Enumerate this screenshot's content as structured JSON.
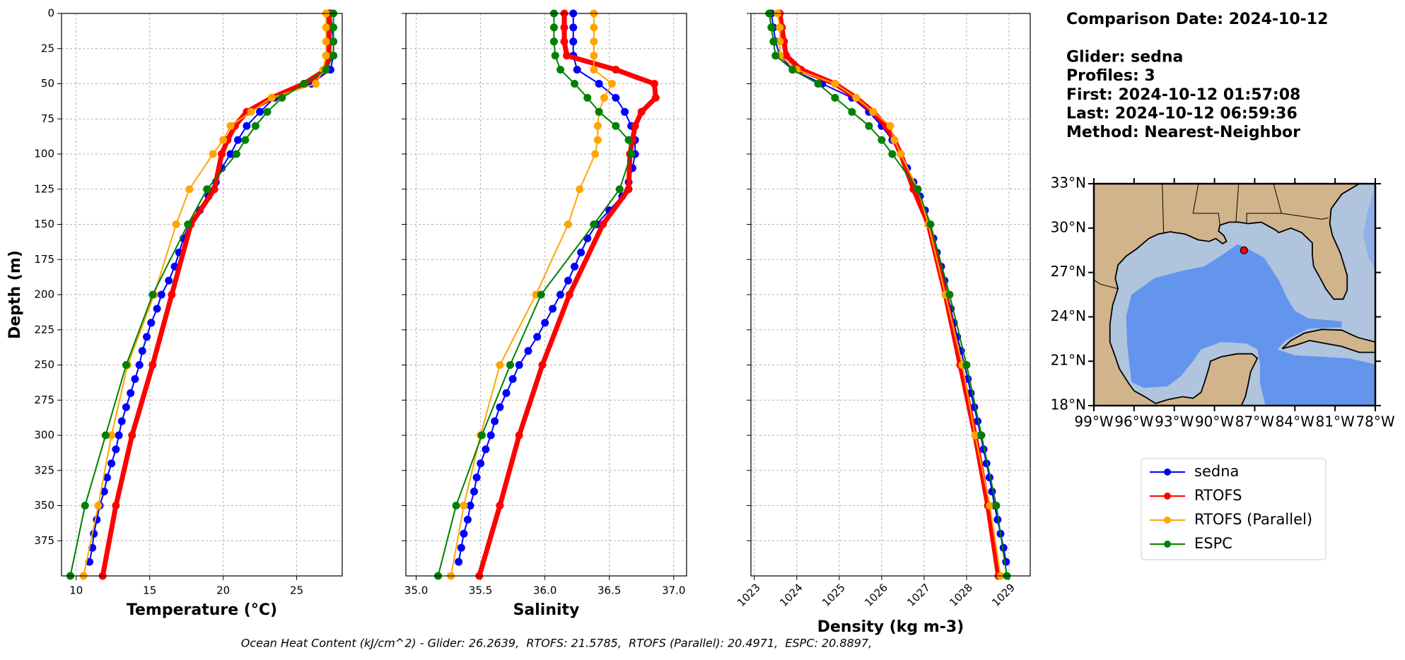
{
  "chart_data": [
    {
      "type": "line",
      "xlabel": "Temperature (°C)",
      "ylabel": "Depth (m)",
      "xlim": [
        9,
        28.1
      ],
      "xticks": [
        10,
        15,
        20,
        25
      ],
      "ylim": [
        400,
        0
      ],
      "yticks": [
        0,
        25,
        50,
        75,
        100,
        125,
        150,
        175,
        200,
        225,
        250,
        275,
        300,
        325,
        350,
        375
      ],
      "grid": true,
      "legend": "outside right",
      "series": [
        {
          "name": "sedna",
          "color": "#0000ff",
          "linewidth": 2,
          "y": [
            0,
            10,
            20,
            30,
            40,
            50,
            60,
            70,
            80,
            90,
            100,
            110,
            120,
            130,
            140,
            150,
            160,
            170,
            180,
            190,
            200,
            210,
            220,
            230,
            240,
            250,
            260,
            270,
            280,
            290,
            300,
            310,
            320,
            330,
            340,
            350,
            360,
            370,
            380,
            390
          ],
          "values": [
            27.3,
            27.4,
            27.5,
            27.5,
            27.3,
            26.0,
            23.5,
            22.5,
            21.6,
            21.0,
            20.5,
            19.9,
            19.5,
            19.0,
            18.4,
            17.7,
            17.3,
            17.0,
            16.7,
            16.3,
            15.8,
            15.5,
            15.1,
            14.8,
            14.5,
            14.3,
            14.0,
            13.7,
            13.4,
            13.1,
            12.9,
            12.7,
            12.4,
            12.1,
            11.9,
            11.6,
            11.4,
            11.2,
            11.1,
            10.9
          ]
        },
        {
          "name": "RTOFS",
          "color": "#ff0000",
          "linewidth": 7,
          "y": [
            0,
            10,
            20,
            30,
            40,
            50,
            60,
            70,
            80,
            90,
            100,
            125,
            150,
            200,
            250,
            300,
            350,
            400
          ],
          "values": [
            27.2,
            27.2,
            27.2,
            27.2,
            27.0,
            25.5,
            23.3,
            21.6,
            20.8,
            20.3,
            19.9,
            19.4,
            17.8,
            16.5,
            15.2,
            13.8,
            12.7,
            11.8
          ]
        },
        {
          "name": "RTOFS (Parallel)",
          "color": "#ffa500",
          "linewidth": 2,
          "y": [
            0,
            10,
            20,
            30,
            40,
            50,
            60,
            70,
            80,
            90,
            100,
            125,
            150,
            200,
            250,
            300,
            350,
            400
          ],
          "values": [
            27.0,
            27.0,
            27.0,
            27.0,
            26.8,
            26.3,
            23.3,
            21.9,
            20.5,
            20.0,
            19.3,
            17.7,
            16.8,
            15.3,
            13.5,
            12.4,
            11.5,
            10.5
          ]
        },
        {
          "name": "ESPC",
          "color": "#008000",
          "linewidth": 2,
          "y": [
            0,
            10,
            20,
            30,
            40,
            50,
            60,
            70,
            80,
            90,
            100,
            125,
            150,
            200,
            250,
            300,
            350,
            400
          ],
          "values": [
            27.5,
            27.5,
            27.5,
            27.5,
            27.0,
            25.5,
            24.0,
            23.0,
            22.2,
            21.5,
            20.9,
            18.9,
            17.6,
            15.2,
            13.4,
            12.0,
            10.6,
            9.6
          ]
        }
      ]
    },
    {
      "type": "line",
      "xlabel": "Salinity",
      "sharey": true,
      "xlim": [
        34.92,
        37.1
      ],
      "xticks": [
        {
          "value": 35,
          "label": "35.0"
        },
        35.5,
        {
          "value": 36,
          "label": "36.0"
        },
        36.5,
        {
          "value": 37,
          "label": "37.0"
        }
      ],
      "ylim": [
        400,
        0
      ],
      "yticks": [
        0,
        25,
        50,
        75,
        100,
        125,
        150,
        175,
        200,
        225,
        250,
        275,
        300,
        325,
        350,
        375
      ],
      "grid": true,
      "series": [
        {
          "color": "#0000ff",
          "linewidth": 2,
          "y": [
            0,
            10,
            20,
            30,
            40,
            50,
            60,
            70,
            80,
            90,
            100,
            110,
            120,
            130,
            140,
            150,
            160,
            170,
            180,
            190,
            200,
            210,
            220,
            230,
            240,
            250,
            260,
            270,
            280,
            290,
            300,
            310,
            320,
            330,
            340,
            350,
            360,
            370,
            380,
            390
          ],
          "values": [
            36.22,
            36.22,
            36.22,
            36.22,
            36.25,
            36.42,
            36.55,
            36.62,
            36.67,
            36.7,
            36.7,
            36.68,
            36.65,
            36.6,
            36.5,
            36.4,
            36.33,
            36.28,
            36.23,
            36.18,
            36.12,
            36.06,
            36.0,
            35.94,
            35.87,
            35.8,
            35.75,
            35.7,
            35.65,
            35.61,
            35.58,
            35.54,
            35.5,
            35.47,
            35.45,
            35.42,
            35.4,
            35.37,
            35.35,
            35.33
          ]
        },
        {
          "color": "#ff0000",
          "linewidth": 7,
          "y": [
            0,
            10,
            20,
            30,
            40,
            50,
            60,
            70,
            80,
            90,
            100,
            125,
            150,
            200,
            250,
            300,
            350,
            400
          ],
          "values": [
            36.15,
            36.15,
            36.15,
            36.17,
            36.55,
            36.85,
            36.86,
            36.75,
            36.7,
            36.68,
            36.66,
            36.65,
            36.45,
            36.19,
            35.98,
            35.8,
            35.65,
            35.49
          ]
        },
        {
          "color": "#ffa500",
          "linewidth": 2,
          "y": [
            0,
            10,
            20,
            30,
            40,
            50,
            60,
            70,
            80,
            90,
            100,
            125,
            150,
            200,
            250,
            300,
            350,
            400
          ],
          "values": [
            36.38,
            36.38,
            36.38,
            36.38,
            36.38,
            36.52,
            36.46,
            36.42,
            36.41,
            36.41,
            36.39,
            36.27,
            36.18,
            35.93,
            35.65,
            35.5,
            35.37,
            35.27
          ]
        },
        {
          "color": "#008000",
          "linewidth": 2,
          "y": [
            0,
            10,
            20,
            30,
            40,
            50,
            60,
            70,
            80,
            90,
            100,
            125,
            150,
            200,
            250,
            300,
            350,
            400
          ],
          "values": [
            36.07,
            36.07,
            36.07,
            36.08,
            36.12,
            36.23,
            36.33,
            36.42,
            36.55,
            36.65,
            36.67,
            36.58,
            36.38,
            35.97,
            35.73,
            35.51,
            35.31,
            35.17
          ]
        }
      ]
    },
    {
      "type": "line",
      "xlabel": "Density (kg m-3)",
      "sharey": true,
      "xtick_rotation": 45,
      "xlim": [
        1022.92,
        1029.5
      ],
      "xticks": [
        1023,
        1024,
        1025,
        1026,
        1027,
        1028,
        1029
      ],
      "ylim": [
        400,
        0
      ],
      "yticks": [
        0,
        25,
        50,
        75,
        100,
        125,
        150,
        175,
        200,
        225,
        250,
        275,
        300,
        325,
        350,
        375
      ],
      "grid": true,
      "series": [
        {
          "color": "#0000ff",
          "linewidth": 2,
          "y": [
            0,
            10,
            20,
            30,
            40,
            50,
            60,
            70,
            80,
            90,
            100,
            110,
            120,
            130,
            140,
            150,
            160,
            170,
            180,
            190,
            200,
            210,
            220,
            230,
            240,
            250,
            260,
            270,
            280,
            290,
            300,
            310,
            320,
            330,
            340,
            350,
            360,
            370,
            380,
            390
          ],
          "values": [
            1023.4,
            1023.45,
            1023.5,
            1023.6,
            1023.9,
            1024.6,
            1025.3,
            1025.7,
            1026.0,
            1026.25,
            1026.45,
            1026.6,
            1026.75,
            1026.9,
            1027.02,
            1027.12,
            1027.22,
            1027.3,
            1027.4,
            1027.48,
            1027.55,
            1027.63,
            1027.7,
            1027.78,
            1027.87,
            1027.95,
            1028.03,
            1028.1,
            1028.18,
            1028.26,
            1028.33,
            1028.4,
            1028.47,
            1028.54,
            1028.6,
            1028.66,
            1028.73,
            1028.8,
            1028.87,
            1028.93
          ]
        },
        {
          "color": "#ff0000",
          "linewidth": 7,
          "y": [
            0,
            10,
            20,
            30,
            40,
            50,
            60,
            70,
            80,
            90,
            100,
            125,
            150,
            200,
            250,
            300,
            350,
            400
          ],
          "values": [
            1023.6,
            1023.65,
            1023.7,
            1023.75,
            1024.1,
            1024.9,
            1025.4,
            1025.8,
            1026.1,
            1026.3,
            1026.45,
            1026.75,
            1027.1,
            1027.5,
            1027.85,
            1028.2,
            1028.5,
            1028.75
          ]
        },
        {
          "color": "#ffa500",
          "linewidth": 2,
          "y": [
            0,
            10,
            20,
            30,
            40,
            50,
            60,
            70,
            80,
            90,
            100,
            125,
            150,
            200,
            250,
            300,
            350,
            400
          ],
          "values": [
            1023.55,
            1023.6,
            1023.6,
            1023.6,
            1024.0,
            1024.9,
            1025.4,
            1025.8,
            1026.2,
            1026.3,
            1026.45,
            1026.85,
            1027.1,
            1027.5,
            1027.9,
            1028.2,
            1028.55,
            1028.8
          ]
        },
        {
          "color": "#008000",
          "linewidth": 2,
          "y": [
            0,
            10,
            20,
            30,
            40,
            50,
            60,
            70,
            80,
            90,
            100,
            125,
            150,
            200,
            250,
            300,
            350,
            400
          ],
          "values": [
            1023.35,
            1023.4,
            1023.45,
            1023.5,
            1023.9,
            1024.5,
            1024.9,
            1025.3,
            1025.7,
            1026.0,
            1026.25,
            1026.85,
            1027.15,
            1027.6,
            1028.0,
            1028.35,
            1028.7,
            1028.95
          ]
        }
      ]
    },
    {
      "type": "map",
      "xlim": [
        -99,
        -78
      ],
      "xticks": [
        {
          "value": -99,
          "label": "99°W"
        },
        {
          "value": -96,
          "label": "96°W"
        },
        {
          "value": -93,
          "label": "93°W"
        },
        {
          "value": -90,
          "label": "90°W"
        },
        {
          "value": -87,
          "label": "87°W"
        },
        {
          "value": -84,
          "label": "84°W"
        },
        {
          "value": -81,
          "label": "81°W"
        },
        {
          "value": -78,
          "label": "78°W"
        }
      ],
      "ylim": [
        18,
        33
      ],
      "yticks": [
        {
          "value": 33,
          "label": "33°N"
        },
        {
          "value": 30,
          "label": "30°N"
        },
        {
          "value": 27,
          "label": "27°N"
        },
        {
          "value": 24,
          "label": "24°N"
        },
        {
          "value": 21,
          "label": "21°N"
        },
        {
          "value": 18,
          "label": "18°N"
        }
      ],
      "points": {
        "x": [
          -87.8
        ],
        "y": [
          28.5
        ],
        "color": "#ff0000"
      }
    }
  ],
  "info": [
    "Comparison Date: 2024-10-12",
    "Glider: sedna",
    "Profiles: 3",
    "First: 2024-10-12 01:57:08",
    "Last: 2024-10-12 06:59:36",
    "Method: Nearest-Neighbor"
  ],
  "footer": "Ocean Heat Content (kJ/cm^2) - Glider: 26.2639,  RTOFS: 21.5785,  RTOFS (Parallel): 20.4971,  ESPC: 20.8897,"
}
